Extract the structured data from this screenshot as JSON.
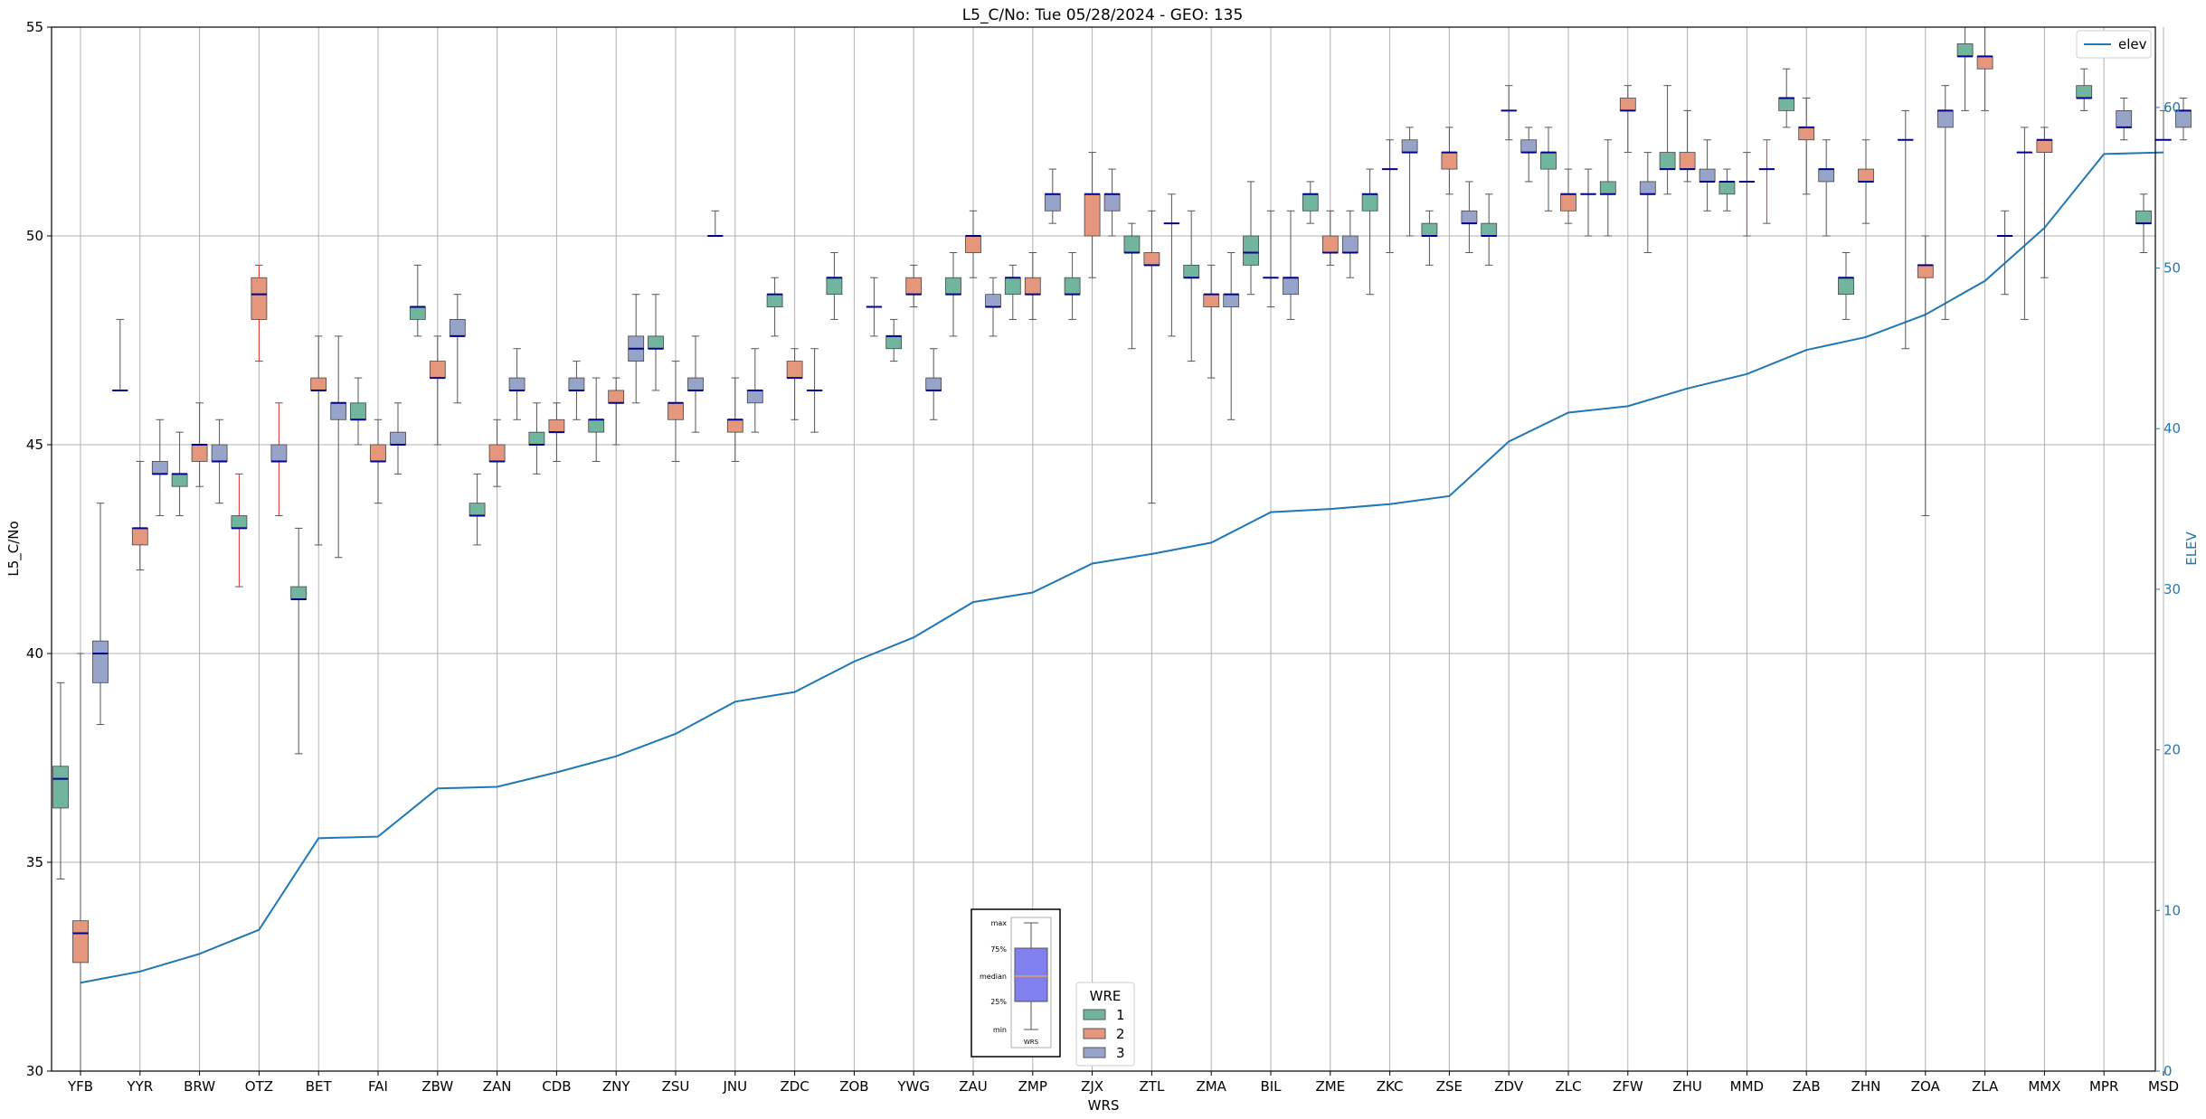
{
  "colors": {
    "wre1": "#72b59e",
    "wre2": "#e4977c",
    "wre3": "#97a3c8",
    "median": "#00008b",
    "whisker": "#555555",
    "whisker_red": "#e03030",
    "elev": "#1f77b4",
    "grid": "#b0b0b0",
    "inset_box": "#8080ee",
    "inset_median": "#e0a060"
  },
  "chart_data": {
    "type": "box",
    "title": "L5_C/No: Tue 05/28/2024 - GEO: 135",
    "xlabel": "WRS",
    "ylabel": "L5_C/No",
    "y2label": "ELEV",
    "ylim": [
      30,
      55
    ],
    "y2lim": [
      0,
      65
    ],
    "yticks": [
      "30",
      "35",
      "40",
      "45",
      "50",
      "55"
    ],
    "y2ticks": [
      "0",
      "10",
      "20",
      "30",
      "40",
      "50",
      "60"
    ],
    "grid": true,
    "categories": [
      "YFB",
      "YYR",
      "BRW",
      "OTZ",
      "BET",
      "FAI",
      "ZBW",
      "ZAN",
      "CDB",
      "ZNY",
      "ZSU",
      "JNU",
      "ZDC",
      "ZOB",
      "YWG",
      "ZAU",
      "ZMP",
      "ZJX",
      "ZTL",
      "ZMA",
      "BIL",
      "ZME",
      "ZKC",
      "ZSE",
      "ZDV",
      "ZLC",
      "ZFW",
      "ZHU",
      "MMD",
      "ZAB",
      "ZHN",
      "ZOA",
      "ZLA",
      "MMX",
      "MPR",
      "MSD"
    ],
    "boxes": [
      [
        0,
        1,
        34.6,
        36.3,
        37.0,
        37.3,
        39.3,
        false
      ],
      [
        0,
        2,
        30.0,
        32.6,
        33.3,
        33.6,
        40.0,
        false
      ],
      [
        0,
        3,
        38.3,
        39.3,
        40.0,
        40.3,
        43.6,
        false
      ],
      [
        1,
        1,
        46.3,
        46.3,
        46.3,
        46.3,
        48.0,
        false
      ],
      [
        1,
        2,
        42.0,
        42.6,
        43.0,
        43.0,
        44.6,
        false
      ],
      [
        1,
        3,
        43.3,
        44.3,
        44.3,
        44.6,
        45.6,
        false
      ],
      [
        2,
        1,
        43.3,
        44.0,
        44.3,
        44.3,
        45.3,
        false
      ],
      [
        2,
        2,
        44.0,
        44.6,
        45.0,
        45.0,
        46.0,
        false
      ],
      [
        2,
        3,
        43.6,
        44.6,
        44.6,
        45.0,
        45.6,
        false
      ],
      [
        3,
        1,
        41.6,
        43.0,
        43.0,
        43.3,
        44.3,
        true
      ],
      [
        3,
        2,
        47.0,
        48.0,
        48.6,
        49.0,
        49.3,
        true
      ],
      [
        3,
        3,
        43.3,
        44.6,
        44.6,
        45.0,
        46.0,
        true
      ],
      [
        4,
        1,
        37.6,
        41.3,
        41.3,
        41.6,
        43.0,
        false
      ],
      [
        4,
        2,
        42.6,
        46.3,
        46.3,
        46.6,
        47.6,
        false
      ],
      [
        4,
        3,
        42.3,
        45.6,
        46.0,
        46.0,
        47.6,
        false
      ],
      [
        5,
        1,
        45.0,
        45.6,
        45.6,
        46.0,
        46.6,
        false
      ],
      [
        5,
        2,
        43.6,
        44.6,
        44.6,
        45.0,
        45.6,
        false
      ],
      [
        5,
        3,
        44.3,
        45.0,
        45.0,
        45.3,
        46.0,
        false
      ],
      [
        6,
        1,
        47.6,
        48.0,
        48.3,
        48.3,
        49.3,
        false
      ],
      [
        6,
        2,
        45.0,
        46.6,
        46.6,
        47.0,
        47.6,
        false
      ],
      [
        6,
        3,
        46.0,
        47.6,
        47.6,
        48.0,
        48.6,
        false
      ],
      [
        7,
        1,
        42.6,
        43.3,
        43.3,
        43.6,
        44.3,
        false
      ],
      [
        7,
        2,
        44.0,
        44.6,
        44.6,
        45.0,
        45.6,
        false
      ],
      [
        7,
        3,
        45.6,
        46.3,
        46.3,
        46.6,
        47.3,
        false
      ],
      [
        8,
        1,
        44.3,
        45.0,
        45.0,
        45.3,
        46.0,
        false
      ],
      [
        8,
        2,
        44.6,
        45.3,
        45.3,
        45.6,
        46.0,
        false
      ],
      [
        8,
        3,
        45.6,
        46.3,
        46.3,
        46.6,
        47.0,
        false
      ],
      [
        9,
        1,
        44.6,
        45.3,
        45.6,
        45.6,
        46.6,
        false
      ],
      [
        9,
        2,
        45.0,
        46.0,
        46.0,
        46.3,
        46.6,
        false
      ],
      [
        9,
        3,
        46.0,
        47.0,
        47.3,
        47.6,
        48.6,
        false
      ],
      [
        10,
        1,
        46.3,
        47.3,
        47.3,
        47.6,
        48.6,
        false
      ],
      [
        10,
        2,
        44.6,
        45.6,
        46.0,
        46.0,
        47.0,
        false
      ],
      [
        10,
        3,
        45.3,
        46.3,
        46.3,
        46.6,
        47.6,
        false
      ],
      [
        11,
        1,
        50.0,
        50.0,
        50.0,
        50.0,
        50.6,
        false
      ],
      [
        11,
        2,
        44.6,
        45.3,
        45.6,
        45.6,
        46.6,
        false
      ],
      [
        11,
        3,
        45.3,
        46.0,
        46.3,
        46.3,
        47.3,
        false
      ],
      [
        12,
        1,
        47.6,
        48.3,
        48.6,
        48.6,
        49.0,
        false
      ],
      [
        12,
        2,
        45.6,
        46.6,
        46.6,
        47.0,
        47.3,
        false
      ],
      [
        12,
        3,
        45.3,
        46.3,
        46.3,
        46.3,
        47.3,
        false
      ],
      [
        13,
        1,
        48.0,
        48.6,
        49.0,
        49.0,
        49.6,
        false
      ],
      [
        13,
        3,
        47.6,
        48.3,
        48.3,
        48.3,
        49.0,
        false
      ],
      [
        14,
        1,
        47.0,
        47.3,
        47.6,
        47.6,
        48.0,
        false
      ],
      [
        14,
        2,
        48.3,
        48.6,
        48.6,
        49.0,
        49.3,
        false
      ],
      [
        14,
        3,
        45.6,
        46.3,
        46.3,
        46.6,
        47.3,
        false
      ],
      [
        15,
        1,
        47.6,
        48.6,
        48.6,
        49.0,
        49.6,
        false
      ],
      [
        15,
        2,
        49.0,
        49.6,
        50.0,
        50.0,
        50.6,
        false
      ],
      [
        15,
        3,
        47.6,
        48.3,
        48.3,
        48.6,
        49.0,
        false
      ],
      [
        16,
        1,
        48.0,
        48.6,
        49.0,
        49.0,
        49.3,
        false
      ],
      [
        16,
        2,
        48.0,
        48.6,
        48.6,
        49.0,
        49.6,
        false
      ],
      [
        16,
        3,
        50.3,
        50.6,
        51.0,
        51.0,
        51.6,
        false
      ],
      [
        17,
        1,
        48.0,
        48.6,
        48.6,
        49.0,
        49.6,
        false
      ],
      [
        17,
        2,
        49.0,
        50.0,
        51.0,
        51.0,
        52.0,
        false
      ],
      [
        17,
        3,
        50.0,
        50.6,
        51.0,
        51.0,
        51.6,
        false
      ],
      [
        18,
        1,
        47.3,
        49.6,
        49.6,
        50.0,
        50.3,
        false
      ],
      [
        18,
        2,
        43.6,
        49.3,
        49.3,
        49.6,
        50.6,
        false
      ],
      [
        18,
        3,
        47.6,
        50.3,
        50.3,
        50.3,
        51.0,
        false
      ],
      [
        19,
        1,
        47.0,
        49.0,
        49.0,
        49.3,
        50.6,
        false
      ],
      [
        19,
        2,
        46.6,
        48.3,
        48.6,
        48.6,
        49.3,
        false
      ],
      [
        19,
        3,
        45.6,
        48.3,
        48.6,
        48.6,
        49.6,
        false
      ],
      [
        20,
        1,
        48.6,
        49.3,
        49.6,
        50.0,
        51.3,
        false
      ],
      [
        20,
        2,
        48.3,
        49.0,
        49.0,
        49.0,
        50.6,
        false
      ],
      [
        20,
        3,
        48.0,
        48.6,
        49.0,
        49.0,
        50.6,
        false
      ],
      [
        21,
        1,
        50.3,
        50.6,
        51.0,
        51.0,
        51.3,
        false
      ],
      [
        21,
        2,
        49.3,
        49.6,
        49.6,
        50.0,
        50.6,
        false
      ],
      [
        21,
        3,
        49.0,
        49.6,
        49.6,
        50.0,
        50.6,
        false
      ],
      [
        22,
        1,
        48.6,
        50.6,
        51.0,
        51.0,
        51.6,
        false
      ],
      [
        22,
        2,
        49.6,
        51.6,
        51.6,
        51.6,
        52.3,
        false
      ],
      [
        22,
        3,
        50.0,
        52.0,
        52.0,
        52.3,
        52.6,
        false
      ],
      [
        23,
        1,
        49.3,
        50.0,
        50.0,
        50.3,
        50.6,
        false
      ],
      [
        23,
        2,
        51.0,
        51.6,
        52.0,
        52.0,
        52.6,
        false
      ],
      [
        23,
        3,
        49.6,
        50.3,
        50.3,
        50.6,
        51.3,
        false
      ],
      [
        24,
        1,
        49.3,
        50.0,
        50.0,
        50.3,
        51.0,
        false
      ],
      [
        24,
        2,
        52.3,
        53.0,
        53.0,
        53.0,
        53.6,
        false
      ],
      [
        24,
        3,
        51.3,
        52.0,
        52.0,
        52.3,
        52.6,
        false
      ],
      [
        25,
        1,
        50.6,
        51.6,
        52.0,
        52.0,
        52.6,
        false
      ],
      [
        25,
        2,
        50.3,
        50.6,
        51.0,
        51.0,
        51.6,
        false
      ],
      [
        25,
        3,
        50.0,
        51.0,
        51.0,
        51.0,
        51.6,
        false
      ],
      [
        26,
        1,
        50.0,
        51.0,
        51.0,
        51.3,
        52.3,
        false
      ],
      [
        26,
        2,
        52.0,
        53.0,
        53.0,
        53.3,
        53.6,
        false
      ],
      [
        26,
        3,
        49.6,
        51.0,
        51.0,
        51.3,
        52.0,
        false
      ],
      [
        27,
        1,
        51.0,
        51.6,
        51.6,
        52.0,
        53.6,
        false
      ],
      [
        27,
        2,
        51.3,
        51.6,
        51.6,
        52.0,
        53.0,
        false
      ],
      [
        27,
        3,
        50.6,
        51.3,
        51.3,
        51.6,
        52.3,
        false
      ],
      [
        28,
        1,
        50.6,
        51.0,
        51.3,
        51.3,
        51.6,
        false
      ],
      [
        28,
        2,
        50.0,
        51.3,
        51.3,
        51.3,
        52.0,
        true
      ],
      [
        28,
        3,
        50.3,
        51.6,
        51.6,
        51.6,
        52.3,
        true
      ],
      [
        29,
        1,
        52.6,
        53.0,
        53.3,
        53.3,
        54.0,
        false
      ],
      [
        29,
        2,
        51.0,
        52.3,
        52.6,
        52.6,
        53.3,
        false
      ],
      [
        29,
        3,
        50.0,
        51.3,
        51.6,
        51.6,
        52.3,
        false
      ],
      [
        30,
        1,
        48.0,
        48.6,
        49.0,
        49.0,
        49.6,
        false
      ],
      [
        30,
        2,
        50.3,
        51.3,
        51.3,
        51.6,
        52.3,
        false
      ],
      [
        31,
        1,
        47.3,
        52.3,
        52.3,
        52.3,
        53.0,
        false
      ],
      [
        31,
        2,
        43.3,
        49.0,
        49.3,
        49.3,
        50.0,
        false
      ],
      [
        31,
        3,
        48.0,
        52.6,
        53.0,
        53.0,
        53.6,
        false
      ],
      [
        32,
        1,
        53.0,
        54.3,
        54.3,
        54.6,
        55.0,
        false
      ],
      [
        32,
        2,
        53.0,
        54.0,
        54.3,
        54.3,
        55.0,
        false
      ],
      [
        32,
        3,
        48.6,
        50.0,
        50.0,
        50.0,
        50.6,
        false
      ],
      [
        33,
        1,
        48.0,
        52.0,
        52.0,
        52.0,
        52.6,
        false
      ],
      [
        33,
        2,
        49.0,
        52.0,
        52.3,
        52.3,
        52.6,
        false
      ],
      [
        34,
        1,
        53.0,
        53.3,
        53.3,
        53.6,
        54.0,
        false
      ],
      [
        34,
        3,
        52.3,
        52.6,
        52.6,
        53.0,
        53.3,
        false
      ],
      [
        35,
        1,
        49.6,
        50.3,
        50.3,
        50.6,
        51.0,
        false
      ],
      [
        35,
        2,
        52.3,
        52.3,
        52.3,
        52.3,
        53.0,
        false
      ],
      [
        35,
        3,
        52.3,
        52.6,
        53.0,
        53.0,
        53.3,
        false
      ]
    ],
    "elev": [
      5.5,
      6.2,
      7.3,
      8.8,
      14.5,
      14.6,
      17.6,
      17.7,
      18.6,
      19.6,
      21.0,
      23.0,
      23.6,
      25.5,
      27.0,
      29.2,
      29.8,
      31.6,
      32.2,
      32.9,
      34.8,
      35.0,
      35.3,
      35.8,
      39.2,
      41.0,
      41.4,
      42.5,
      43.4,
      44.9,
      45.7,
      47.1,
      49.2,
      52.5,
      57.1,
      57.2
    ]
  },
  "legend_elev": {
    "label": "elev"
  },
  "legend_wre": {
    "title": "WRE",
    "items": [
      {
        "label": "1",
        "color": "#72b59e"
      },
      {
        "label": "2",
        "color": "#e4977c"
      },
      {
        "label": "3",
        "color": "#97a3c8"
      }
    ]
  },
  "inset": {
    "labels": [
      "max",
      "75%",
      "median",
      "25%",
      "min"
    ],
    "xlabel": "WRS"
  }
}
